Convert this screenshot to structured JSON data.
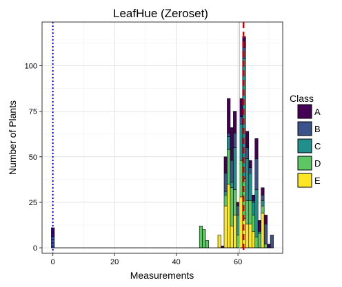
{
  "chart_data": {
    "type": "bar",
    "subtype": "stacked-histogram",
    "title": "LeafHue (Zeroset)",
    "xlabel": "Measurements",
    "ylabel": "Number of Plants",
    "xlim": [
      -3.5,
      74.5
    ],
    "ylim": [
      -3,
      124
    ],
    "x_ticks": [
      0,
      20,
      40,
      60
    ],
    "x_tick_labels": [
      "0",
      "20",
      "40",
      "60"
    ],
    "y_ticks": [
      0,
      25,
      50,
      75,
      100
    ],
    "y_tick_labels": [
      "0",
      "25",
      "50",
      "75",
      "100"
    ],
    "grid": true,
    "legend": {
      "title": "Class",
      "position": "right",
      "entries": [
        {
          "label": "A",
          "color": "#440154"
        },
        {
          "label": "B",
          "color": "#3B528B"
        },
        {
          "label": "C",
          "color": "#21908C"
        },
        {
          "label": "D",
          "color": "#5DC863"
        },
        {
          "label": "E",
          "color": "#FDE725"
        }
      ]
    },
    "bin_width": 1,
    "series": [
      {
        "name": "A",
        "color": "#440154",
        "x": [
          0,
          55,
          56,
          57,
          58,
          59,
          60,
          61,
          62,
          63,
          64,
          65,
          66,
          67,
          68,
          69,
          70,
          71
        ],
        "values": [
          5,
          1,
          9,
          19,
          18,
          12,
          2,
          10,
          6,
          9,
          4,
          3,
          11,
          6,
          4,
          5,
          2,
          0
        ]
      },
      {
        "name": "B",
        "color": "#3B528B",
        "x": [
          0,
          55,
          56,
          57,
          58,
          59,
          60,
          61,
          62,
          63,
          64,
          65,
          66,
          67,
          68,
          69,
          70,
          71
        ],
        "values": [
          6,
          0,
          10,
          2,
          12,
          8,
          5,
          4,
          6,
          6,
          3,
          1,
          17,
          0,
          3,
          11,
          0,
          7
        ]
      },
      {
        "name": "C",
        "color": "#21908C",
        "x": [
          0,
          55,
          56,
          57,
          58,
          59,
          60,
          61,
          62,
          63,
          64,
          65,
          66,
          67,
          68,
          69,
          70,
          71
        ],
        "values": [
          0,
          0,
          2,
          7,
          3,
          23,
          11,
          20,
          66,
          23,
          15,
          7,
          26,
          1,
          3,
          0,
          0,
          0
        ]
      },
      {
        "name": "D",
        "color": "#5DC863",
        "x": [
          48,
          49,
          50,
          55,
          56,
          57,
          58,
          59,
          60,
          61,
          62,
          63,
          64,
          65,
          66,
          67,
          68,
          69,
          70,
          71
        ],
        "values": [
          12,
          10,
          4,
          0,
          6,
          19,
          21,
          14,
          7,
          20,
          22,
          13,
          13,
          9,
          6,
          8,
          4,
          2,
          0,
          0
        ]
      },
      {
        "name": "E",
        "color": "#FDE725",
        "x": [
          54,
          55,
          56,
          57,
          58,
          59,
          60,
          61,
          62,
          63,
          64,
          65,
          66,
          67,
          68,
          69,
          70,
          71
        ],
        "values": [
          7,
          0,
          23,
          35,
          12,
          18,
          0,
          28,
          16,
          13,
          13,
          9,
          0,
          0,
          19,
          0,
          0,
          0
        ]
      }
    ],
    "reference_lines": [
      {
        "axis": "x",
        "value": 0,
        "color": "#0000CC",
        "style": "dotted"
      },
      {
        "axis": "x",
        "value": 60.5,
        "color": "#BBBBBB",
        "style": "solid"
      },
      {
        "axis": "x",
        "value": 61.8,
        "color": "#CC0000",
        "style": "dashed"
      }
    ]
  }
}
